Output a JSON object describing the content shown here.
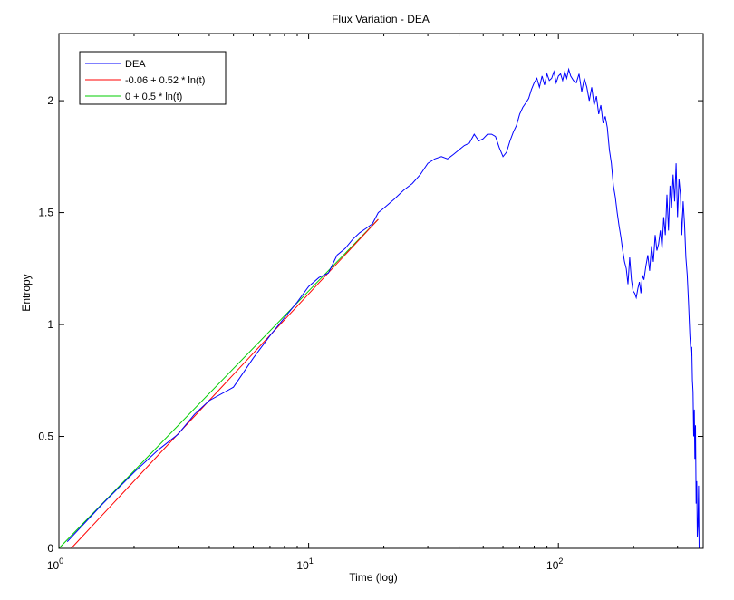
{
  "chart_data": {
    "type": "line",
    "title": "Flux Variation - DEA",
    "xlabel": "Time (log)",
    "ylabel": "Entropy",
    "xscale": "log",
    "xlim": [
      1,
      380
    ],
    "ylim": [
      0,
      2.3
    ],
    "grid": false,
    "legend_position": "top-left",
    "xticks": [
      {
        "value": 1,
        "base": "10",
        "exp": "0"
      },
      {
        "value": 10,
        "base": "10",
        "exp": "1"
      },
      {
        "value": 100,
        "base": "10",
        "exp": "2"
      }
    ],
    "yticks": [
      {
        "value": 0,
        "label": "0"
      },
      {
        "value": 0.5,
        "label": "0.5"
      },
      {
        "value": 1,
        "label": "1"
      },
      {
        "value": 1.5,
        "label": "1.5"
      },
      {
        "value": 2,
        "label": "2"
      }
    ],
    "series": [
      {
        "name": "DEA",
        "color": "#0000ff",
        "x": [
          1.08,
          1.5,
          2,
          2.5,
          3,
          3.5,
          4,
          5,
          6,
          7,
          8,
          9,
          10,
          11,
          12,
          13,
          14,
          15,
          16,
          17,
          18,
          19,
          20,
          22,
          24,
          26,
          28,
          30,
          32,
          34,
          36,
          38,
          40,
          42,
          44,
          46,
          48,
          50,
          52,
          54,
          56,
          58,
          60,
          62,
          64,
          66,
          68,
          70,
          72,
          74,
          76,
          78,
          80,
          82,
          84,
          86,
          88,
          90,
          92,
          94,
          96,
          98,
          100,
          102,
          104,
          106,
          108,
          110,
          112,
          115,
          118,
          121,
          124,
          127,
          130,
          133,
          136,
          139,
          142,
          145,
          148,
          151,
          154,
          157,
          160,
          163,
          166,
          169,
          172,
          175,
          178,
          181,
          184,
          187,
          190,
          193,
          196,
          199,
          202,
          205,
          208,
          211,
          214,
          217,
          220,
          224,
          228,
          232,
          236,
          240,
          244,
          248,
          252,
          256,
          260,
          264,
          268,
          272,
          276,
          280,
          284,
          288,
          292,
          296,
          300,
          304,
          308,
          312,
          316,
          320,
          324,
          328,
          332,
          336,
          340,
          342,
          344,
          346,
          348,
          350,
          352,
          354,
          356,
          358,
          360,
          362,
          364,
          366
        ],
        "y": [
          0.03,
          0.2,
          0.34,
          0.44,
          0.51,
          0.6,
          0.66,
          0.72,
          0.85,
          0.95,
          1.03,
          1.1,
          1.17,
          1.21,
          1.23,
          1.31,
          1.34,
          1.38,
          1.41,
          1.43,
          1.45,
          1.5,
          1.52,
          1.56,
          1.6,
          1.63,
          1.67,
          1.72,
          1.74,
          1.75,
          1.74,
          1.76,
          1.78,
          1.8,
          1.81,
          1.85,
          1.82,
          1.83,
          1.85,
          1.85,
          1.84,
          1.79,
          1.75,
          1.77,
          1.82,
          1.86,
          1.89,
          1.94,
          1.97,
          1.99,
          2.01,
          2.05,
          2.08,
          2.1,
          2.06,
          2.11,
          2.07,
          2.12,
          2.09,
          2.1,
          2.13,
          2.08,
          2.11,
          2.12,
          2.09,
          2.13,
          2.1,
          2.14,
          2.11,
          2.09,
          2.08,
          2.12,
          2.04,
          2.1,
          2.06,
          2.0,
          2.06,
          1.98,
          2.02,
          1.94,
          1.98,
          1.9,
          1.93,
          1.88,
          1.78,
          1.72,
          1.62,
          1.57,
          1.5,
          1.44,
          1.39,
          1.33,
          1.28,
          1.25,
          1.18,
          1.3,
          1.2,
          1.15,
          1.14,
          1.12,
          1.16,
          1.19,
          1.14,
          1.22,
          1.2,
          1.26,
          1.31,
          1.24,
          1.35,
          1.28,
          1.4,
          1.33,
          1.36,
          1.42,
          1.34,
          1.48,
          1.4,
          1.58,
          1.42,
          1.62,
          1.52,
          1.67,
          1.55,
          1.72,
          1.48,
          1.65,
          1.58,
          1.4,
          1.55,
          1.45,
          1.3,
          1.22,
          1.1,
          0.95,
          0.86,
          0.9,
          0.75,
          0.7,
          0.5,
          0.62,
          0.4,
          0.55,
          0.2,
          0.3,
          0.05,
          0.1,
          0.28,
          0.0
        ]
      },
      {
        "name": "-0.06 + 0.52 * ln(t)",
        "color": "#ff0000",
        "x": [
          1.12,
          19
        ],
        "y": [
          0.0,
          1.47
        ]
      },
      {
        "name": "0 + 0.5 * ln(t)",
        "color": "#00cc00",
        "x": [
          1.0,
          19
        ],
        "y": [
          0.0,
          1.47
        ]
      }
    ]
  }
}
